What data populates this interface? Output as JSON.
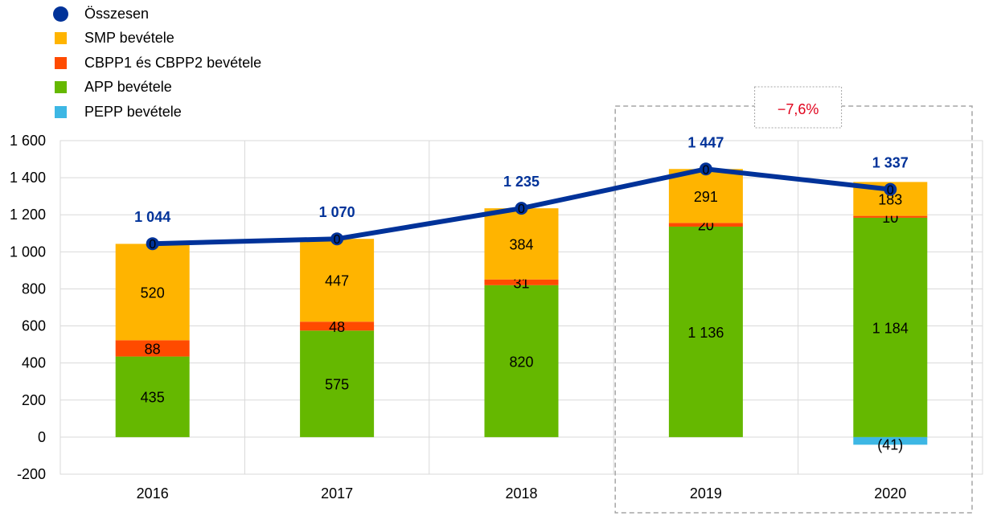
{
  "colors": {
    "total": "#003299",
    "smp": "#FFB400",
    "cbpp": "#FF4B00",
    "app": "#65B800",
    "pepp": "#3DB7E4",
    "annotation": "#E0001B",
    "gridline": "#D9D9D9",
    "dashed_box": "#A6A6A6"
  },
  "legend": [
    {
      "key": "total",
      "label": "Összesen",
      "marker": "dot"
    },
    {
      "key": "smp",
      "label": "SMP bevétele",
      "marker": "square"
    },
    {
      "key": "cbpp",
      "label": "CBPP1 és CBPP2 bevétele",
      "marker": "square"
    },
    {
      "key": "app",
      "label": "APP bevétele",
      "marker": "square"
    },
    {
      "key": "pepp",
      "label": "PEPP bevétele",
      "marker": "square"
    }
  ],
  "annotation": {
    "label": "−7,6%",
    "covers": [
      "2019",
      "2020"
    ]
  },
  "chart_data": {
    "type": "bar",
    "stacked": true,
    "categories": [
      "2016",
      "2017",
      "2018",
      "2019",
      "2020"
    ],
    "series": [
      {
        "key": "app",
        "name": "APP bevétele",
        "values": [
          435,
          575,
          820,
          1136,
          1184
        ],
        "labels": [
          "435",
          "575",
          "820",
          "1 136",
          "1 184"
        ]
      },
      {
        "key": "cbpp",
        "name": "CBPP1 és CBPP2 bevétele",
        "values": [
          88,
          48,
          31,
          20,
          10
        ],
        "labels": [
          "88",
          "48",
          "31",
          "20",
          "10"
        ]
      },
      {
        "key": "smp",
        "name": "SMP bevétele",
        "values": [
          520,
          447,
          384,
          291,
          183
        ],
        "labels": [
          "520",
          "447",
          "384",
          "291",
          "183"
        ]
      },
      {
        "key": "pepp",
        "name": "PEPP bevétele",
        "values": [
          0,
          0,
          0,
          0,
          -41
        ],
        "labels": [
          "",
          "",
          "",
          "",
          "(41)"
        ]
      }
    ],
    "line": {
      "key": "total",
      "name": "Összesen",
      "values": [
        1044,
        1070,
        1235,
        1447,
        1337
      ],
      "labels": [
        "1 044",
        "1 070",
        "1 235",
        "1 447",
        "1 337"
      ],
      "marker_labels": [
        "0",
        "0",
        "0",
        "0",
        "0"
      ]
    },
    "ylim": [
      -200,
      1600
    ],
    "yticks": [
      -200,
      0,
      200,
      400,
      600,
      800,
      1000,
      1200,
      1400,
      1600
    ],
    "ytick_labels": [
      "-200",
      "0",
      "200",
      "400",
      "600",
      "800",
      "1 000",
      "1 200",
      "1 400",
      "1 600"
    ],
    "grid": true,
    "legend_position": "top-left"
  }
}
